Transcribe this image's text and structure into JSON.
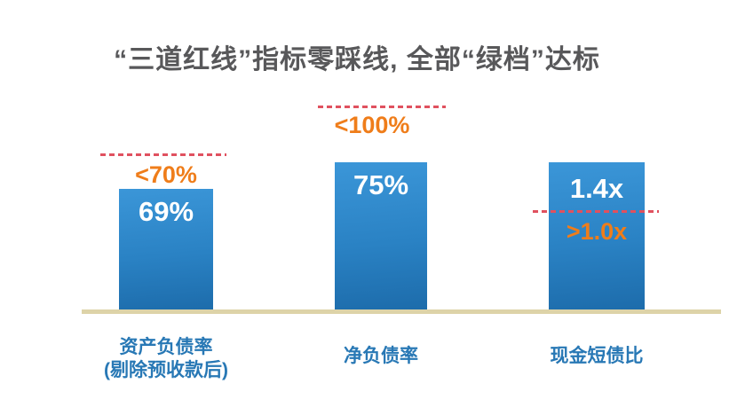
{
  "title": "“三道红线”指标零踩线, 全部“绿档”达标",
  "colors": {
    "title_text": "#58585a",
    "bar_gradient_top": "#3b96d8",
    "bar_gradient_bottom": "#1d6cab",
    "bar_value_text": "#ffffff",
    "threshold_line": "#e0515f",
    "threshold_text": "#ef7d1a",
    "category_text": "#2878b5",
    "baseline_axis": "#ddd3a8",
    "background": "#ffffff"
  },
  "chart_data": {
    "type": "bar",
    "title": "“三道红线”指标零踩线, 全部“绿档”达标",
    "categories": [
      "资产负债率(剔除预收款后)",
      "净负债率",
      "现金短债比"
    ],
    "values": [
      69,
      75,
      1.4
    ],
    "value_labels": [
      "69%",
      "75%",
      "1.4x"
    ],
    "threshold_labels": [
      "<70%",
      "<100%",
      ">1.0x"
    ],
    "legend": "none",
    "grid": false,
    "xlabel": "",
    "ylabel": "",
    "bars": [
      {
        "category_line1": "资产负债率",
        "category_line2": "(剔除预收款后)",
        "value_label": "69%",
        "value": 69,
        "threshold_label": "<70%",
        "threshold_line_position": "above_bar"
      },
      {
        "category_line1": "净负债率",
        "category_line2": "",
        "value_label": "75%",
        "value": 75,
        "threshold_label": "<100%",
        "threshold_line_position": "above_bar"
      },
      {
        "category_line1": "现金短债比",
        "category_line2": "",
        "value_label": "1.4x",
        "value": 1.4,
        "threshold_label": ">1.0x",
        "threshold_line_position": "crosses_bar"
      }
    ]
  }
}
